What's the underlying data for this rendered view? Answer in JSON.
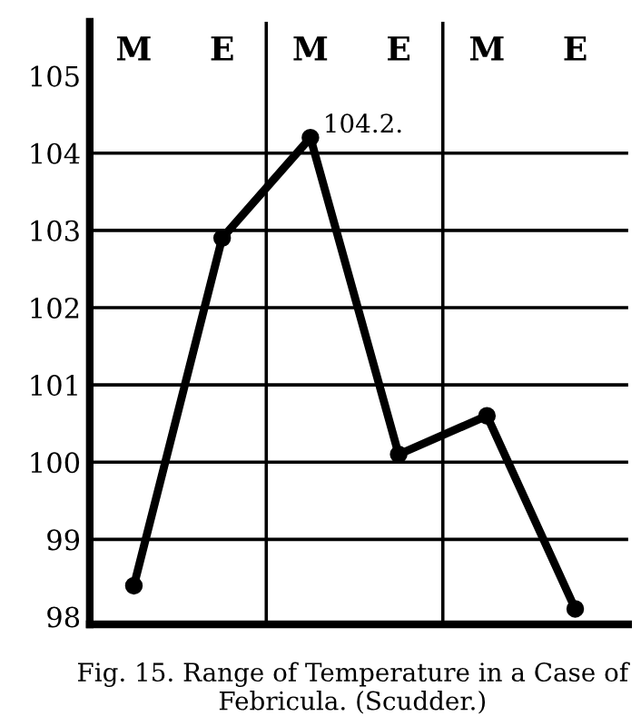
{
  "chart_data": {
    "type": "line",
    "title": "Fig. 15. Range of Temperature in a Case of Febricula. (Scudder.)",
    "categories": [
      "M",
      "E",
      "M",
      "E",
      "M",
      "E"
    ],
    "series": [
      {
        "color": "#000000",
        "values": [
          98.4,
          102.9,
          104.2,
          100.1,
          100.6,
          98.1
        ],
        "value_labels": [
          null,
          null,
          "104.2.",
          null,
          null,
          null
        ]
      }
    ],
    "ylim": [
      97.9,
      105.7
    ],
    "yticks": [
      98,
      99,
      100,
      101,
      102,
      103,
      104,
      105
    ],
    "grid": true,
    "marker": "circle",
    "line_style": "solid",
    "legend": false
  }
}
